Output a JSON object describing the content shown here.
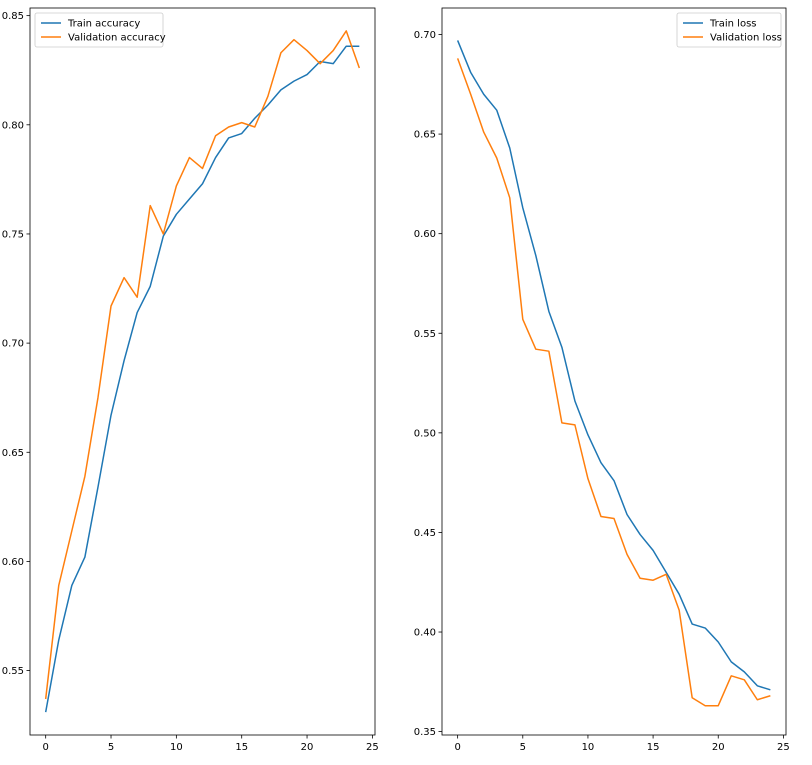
{
  "colors": {
    "train": "#1f77b4",
    "validation": "#ff7f0e"
  },
  "chart_data": [
    {
      "type": "line",
      "x": [
        0,
        1,
        2,
        3,
        4,
        5,
        6,
        7,
        8,
        9,
        10,
        11,
        12,
        13,
        14,
        15,
        16,
        17,
        18,
        19,
        20,
        21,
        22,
        23,
        24
      ],
      "series": [
        {
          "name": "Train accuracy",
          "color": "#1f77b4",
          "values": [
            0.531,
            0.564,
            0.589,
            0.602,
            0.634,
            0.667,
            0.692,
            0.714,
            0.726,
            0.749,
            0.759,
            0.766,
            0.773,
            0.785,
            0.794,
            0.796,
            0.803,
            0.809,
            0.816,
            0.82,
            0.823,
            0.829,
            0.828,
            0.836,
            0.836
          ]
        },
        {
          "name": "Validation accuracy",
          "color": "#ff7f0e",
          "values": [
            0.537,
            0.589,
            0.614,
            0.639,
            0.675,
            0.717,
            0.73,
            0.721,
            0.763,
            0.75,
            0.772,
            0.785,
            0.78,
            0.795,
            0.799,
            0.801,
            0.799,
            0.813,
            0.833,
            0.839,
            0.834,
            0.828,
            0.834,
            0.843,
            0.826
          ]
        }
      ],
      "xticks": [
        0,
        5,
        10,
        15,
        20,
        25
      ],
      "yticks": [
        0.55,
        0.6,
        0.65,
        0.7,
        0.75,
        0.8,
        0.85
      ],
      "ytick_labels": [
        "0.55",
        "0.60",
        "0.65",
        "0.70",
        "0.75",
        "0.80",
        "0.85"
      ],
      "xlim": [
        -1.2,
        25.2
      ],
      "ylim": [
        0.5205,
        0.8535
      ],
      "legend": "upper left"
    },
    {
      "type": "line",
      "x": [
        0,
        1,
        2,
        3,
        4,
        5,
        6,
        7,
        8,
        9,
        10,
        11,
        12,
        13,
        14,
        15,
        16,
        17,
        18,
        19,
        20,
        21,
        22,
        23,
        24
      ],
      "series": [
        {
          "name": "Train loss",
          "color": "#1f77b4",
          "values": [
            0.697,
            0.681,
            0.67,
            0.662,
            0.643,
            0.613,
            0.589,
            0.561,
            0.543,
            0.516,
            0.499,
            0.485,
            0.476,
            0.459,
            0.449,
            0.441,
            0.43,
            0.419,
            0.404,
            0.402,
            0.395,
            0.385,
            0.38,
            0.373,
            0.371
          ]
        },
        {
          "name": "Validation loss",
          "color": "#ff7f0e",
          "values": [
            0.688,
            0.67,
            0.651,
            0.638,
            0.618,
            0.557,
            0.542,
            0.541,
            0.505,
            0.504,
            0.477,
            0.458,
            0.457,
            0.439,
            0.427,
            0.426,
            0.429,
            0.411,
            0.367,
            0.363,
            0.363,
            0.378,
            0.376,
            0.366,
            0.368
          ]
        }
      ],
      "xticks": [
        0,
        5,
        10,
        15,
        20,
        25
      ],
      "yticks": [
        0.35,
        0.4,
        0.45,
        0.5,
        0.55,
        0.6,
        0.65,
        0.7
      ],
      "ytick_labels": [
        "0.35",
        "0.40",
        "0.45",
        "0.50",
        "0.55",
        "0.60",
        "0.65",
        "0.70"
      ],
      "xlim": [
        -1.2,
        25.2
      ],
      "ylim": [
        0.3483,
        0.7133
      ],
      "legend": "upper right"
    }
  ]
}
